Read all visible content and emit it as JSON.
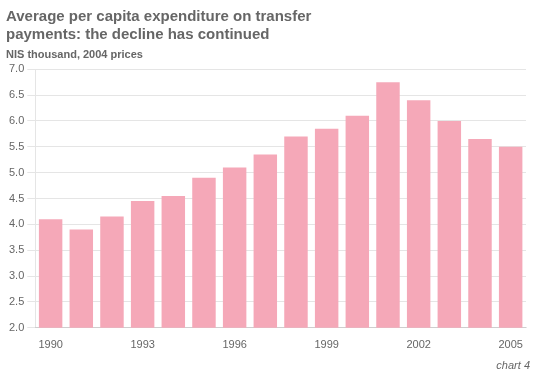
{
  "chart_data": {
    "type": "bar",
    "title": [
      "Average per capita expenditure on transfer",
      "payments: the decline has continued"
    ],
    "subtitle": "NIS thousand, 2004 prices",
    "annotations": [
      "chart 4"
    ],
    "categories": [
      "1990",
      null,
      null,
      "1993",
      null,
      null,
      "1996",
      null,
      null,
      "1999",
      null,
      null,
      "2002",
      null,
      null,
      "2005"
    ],
    "values": [
      4.1,
      3.9,
      4.15,
      4.45,
      4.55,
      4.9,
      5.1,
      5.35,
      5.7,
      5.85,
      6.1,
      6.75,
      6.4,
      6.0,
      5.65,
      5.5
    ],
    "color": "#f5a8b8",
    "ylim": [
      2.0,
      7.0
    ],
    "yticks": [
      {
        "value": 2,
        "label": "2.0"
      },
      2.5,
      {
        "value": 3,
        "label": "3.0"
      },
      3.5,
      {
        "value": 4,
        "label": "4.0"
      },
      4.5,
      {
        "value": 5,
        "label": "5.0"
      },
      5.5,
      {
        "value": 6,
        "label": "6.0"
      },
      6.5,
      {
        "value": 7,
        "label": "7.0"
      }
    ],
    "grid": true
  }
}
